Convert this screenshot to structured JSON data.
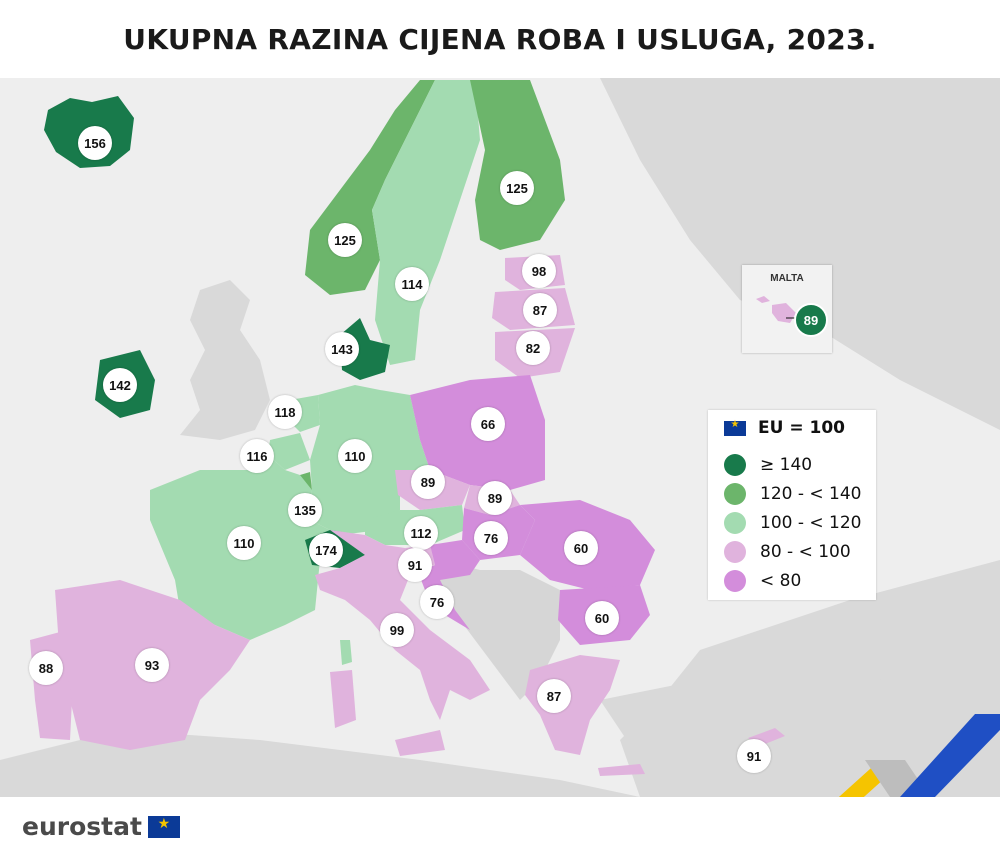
{
  "title": "UKUPNA RAZINA CIJENA ROBA I USLUGA, 2023.",
  "legend": {
    "reference": "EU = 100",
    "classes": [
      {
        "label": "≥ 140",
        "color": "#187a4b"
      },
      {
        "label": "120 - < 140",
        "color": "#6cb56b"
      },
      {
        "label": "100 - < 120",
        "color": "#a3dbb1"
      },
      {
        "label": "80 - < 100",
        "color": "#e0b3dd"
      },
      {
        "label": "< 80",
        "color": "#d38ddb"
      }
    ]
  },
  "inset": {
    "title": "MALTA",
    "value": "89"
  },
  "values": {
    "iceland": "156",
    "norway": "125",
    "sweden": "114",
    "finland": "125",
    "estonia": "98",
    "latvia": "87",
    "lithuania": "82",
    "denmark": "143",
    "ireland": "142",
    "netherlands": "118",
    "belgium": "116",
    "luxembourg": "135",
    "germany": "110",
    "poland": "66",
    "czechia": "89",
    "slovakia": "89",
    "austria": "112",
    "hungary": "76",
    "romania": "60",
    "slovenia": "91",
    "croatia": "76",
    "bulgaria": "60",
    "france": "110",
    "switzerland": "174",
    "italy": "99",
    "spain": "93",
    "portugal": "88",
    "greece": "87",
    "cyprus": "91"
  },
  "brand": "eurostat"
}
